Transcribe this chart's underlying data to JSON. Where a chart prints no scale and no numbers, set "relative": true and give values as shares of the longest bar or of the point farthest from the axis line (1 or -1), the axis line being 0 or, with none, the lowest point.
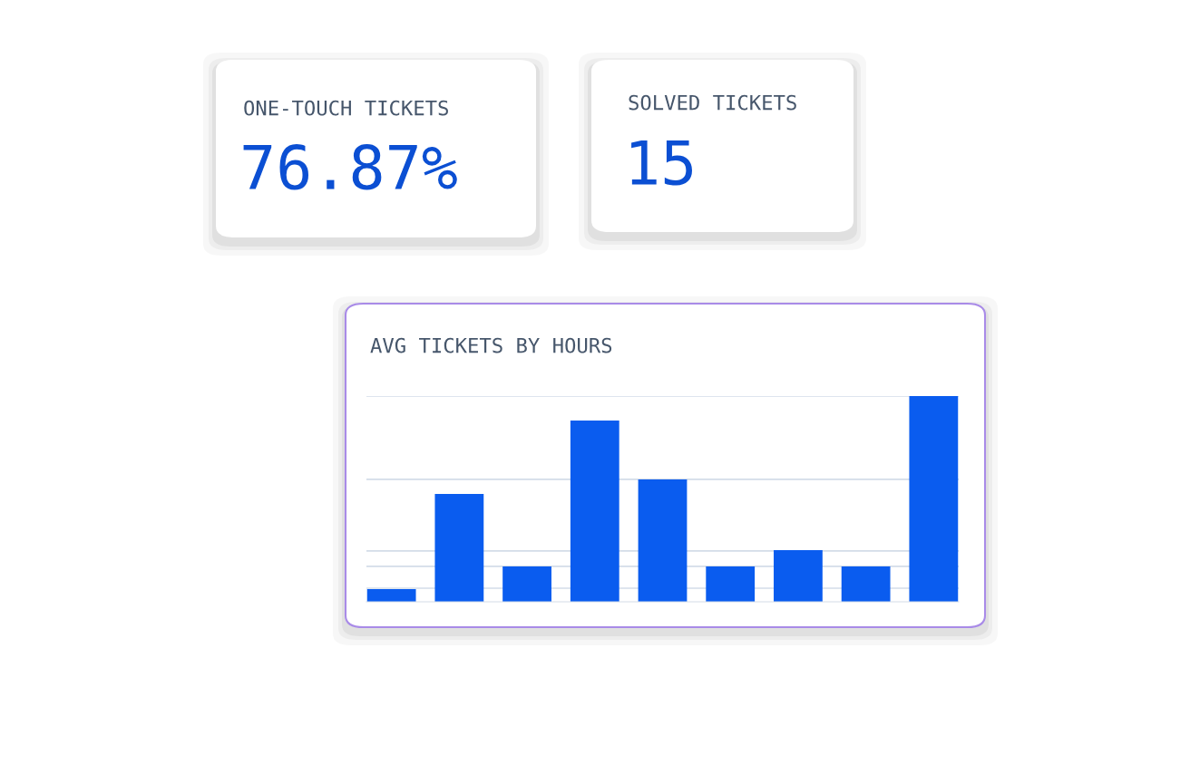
{
  "chart_data": [
    {
      "type": "other",
      "title": "ONE-TOUCH TICKETS",
      "annotations": [
        "76.87%"
      ]
    },
    {
      "type": "other",
      "title": "SOLVED TICKETS",
      "annotations": [
        "15"
      ]
    },
    {
      "type": "bar",
      "title": "AVG TICKETS BY HOURS",
      "relative": true,
      "categories": [
        null,
        null,
        null,
        null,
        null,
        null,
        null,
        null,
        null
      ],
      "values": [
        0.062,
        0.524,
        0.172,
        0.881,
        0.595,
        0.172,
        0.251,
        0.172,
        1
      ],
      "color": "#0a5cef",
      "ref_lines": [
        {
          "axis": "y",
          "value": 1,
          "color": "#d3dce8"
        },
        {
          "axis": "y",
          "value": 0.595,
          "color": "#d3dce8"
        },
        {
          "axis": "y",
          "value": 0.247,
          "color": "#d3dce8"
        },
        {
          "axis": "y",
          "value": 0.172,
          "color": "#d3dce8"
        },
        {
          "axis": "y",
          "value": 0.066,
          "color": "#d3dce8"
        }
      ]
    }
  ]
}
